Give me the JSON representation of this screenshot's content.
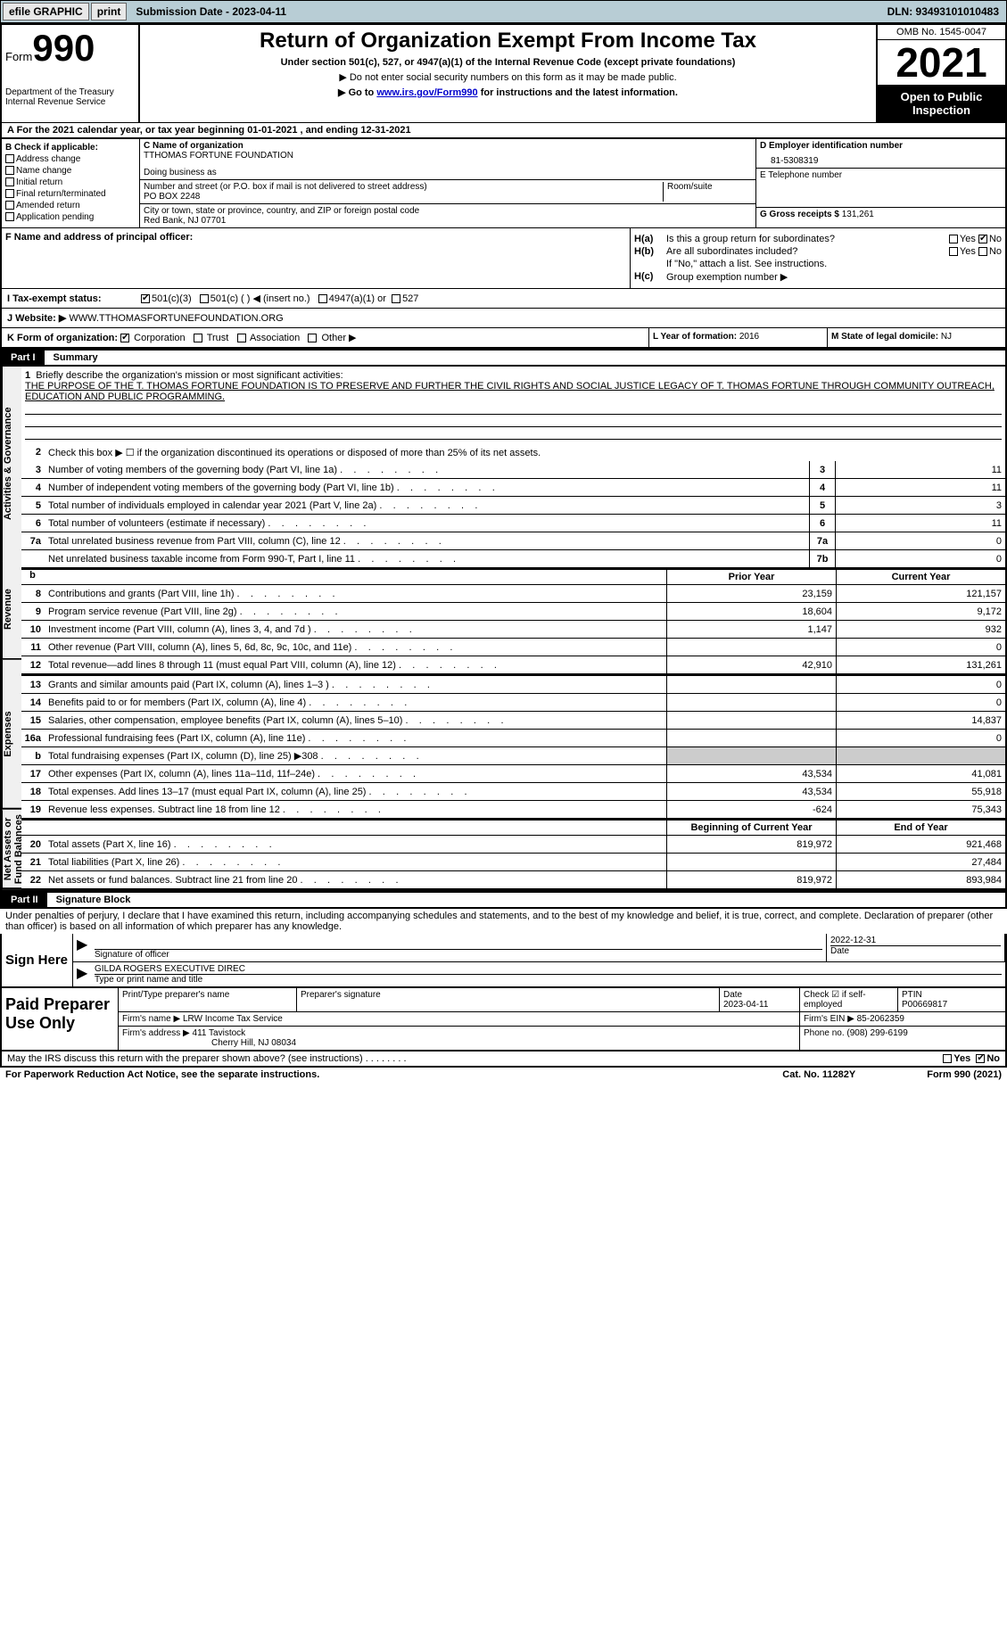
{
  "topbar": {
    "efile": "efile GRAPHIC",
    "print": "print",
    "subdate": "Submission Date - 2023-04-11",
    "dln": "DLN: 93493101010483"
  },
  "header": {
    "form_word": "Form",
    "form_num": "990",
    "title": "Return of Organization Exempt From Income Tax",
    "sub1": "Under section 501(c), 527, or 4947(a)(1) of the Internal Revenue Code (except private foundations)",
    "sub2": "▶ Do not enter social security numbers on this form as it may be made public.",
    "sub3_pre": "▶ Go to ",
    "sub3_link": "www.irs.gov/Form990",
    "sub3_post": " for instructions and the latest information.",
    "dept": "Department of the Treasury",
    "irs": "Internal Revenue Service",
    "omb": "OMB No. 1545-0047",
    "year": "2021",
    "otp": "Open to Public Inspection"
  },
  "rowA": "A For the 2021 calendar year, or tax year beginning 01-01-2021    , and ending 12-31-2021",
  "colB": {
    "label": "B Check if applicable:",
    "items": [
      "Address change",
      "Name change",
      "Initial return",
      "Final return/terminated",
      "Amended return",
      "Application pending"
    ]
  },
  "colC": {
    "name_label": "C Name of organization",
    "name": "TTHOMAS FORTUNE FOUNDATION",
    "dba_label": "Doing business as",
    "addr_label": "Number and street (or P.O. box if mail is not delivered to street address)",
    "room_label": "Room/suite",
    "addr": "PO BOX 2248",
    "city_label": "City or town, state or province, country, and ZIP or foreign postal code",
    "city": "Red Bank, NJ  07701"
  },
  "colD": {
    "label": "D Employer identification number",
    "ein": "81-5308319",
    "tel_label": "E Telephone number",
    "gross_label": "G Gross receipts $",
    "gross": "131,261"
  },
  "rowF": {
    "label": "F  Name and address of principal officer:"
  },
  "colH": {
    "ha_label": "H(a)",
    "ha_text": "Is this a group return for subordinates?",
    "hb_label": "H(b)",
    "hb_text": "Are all subordinates included?",
    "hb_note": "If \"No,\" attach a list. See instructions.",
    "hc_label": "H(c)",
    "hc_text": "Group exemption number ▶",
    "yes": "Yes",
    "no": "No"
  },
  "rowI": {
    "label": "I   Tax-exempt status:",
    "opt1": "501(c)(3)",
    "opt2": "501(c) (   ) ◀ (insert no.)",
    "opt3": "4947(a)(1) or",
    "opt4": "527"
  },
  "rowJ": {
    "label": "J   Website: ▶",
    "url": "WWW.TTHOMASFORTUNEFOUNDATION.ORG"
  },
  "rowK": {
    "label": "K Form of organization:",
    "corp": "Corporation",
    "trust": "Trust",
    "assoc": "Association",
    "other": "Other ▶"
  },
  "rowL": {
    "label": "L Year of formation:",
    "val": "2016"
  },
  "rowM": {
    "label": "M State of legal domicile:",
    "val": "NJ"
  },
  "part1": {
    "num": "Part I",
    "title": "Summary"
  },
  "tabs": {
    "ag": "Activities & Governance",
    "rev": "Revenue",
    "exp": "Expenses",
    "na": "Net Assets or Fund Balances"
  },
  "briefly": {
    "num": "1",
    "label": "Briefly describe the organization's mission or most significant activities:",
    "text": "THE PURPOSE OF THE T. THOMAS FORTUNE FOUNDATION IS TO PRESERVE AND FURTHER THE CIVIL RIGHTS AND SOCIAL JUSTICE LEGACY OF T. THOMAS FORTUNE THROUGH COMMUNITY OUTREACH, EDUCATION AND PUBLIC PROGRAMMING."
  },
  "line2": "Check this box ▶ ☐  if the organization discontinued its operations or disposed of more than 25% of its net assets.",
  "lines_ag": [
    {
      "n": "3",
      "t": "Number of voting members of the governing body (Part VI, line 1a)",
      "b": "3",
      "v": "11"
    },
    {
      "n": "4",
      "t": "Number of independent voting members of the governing body (Part VI, line 1b)",
      "b": "4",
      "v": "11"
    },
    {
      "n": "5",
      "t": "Total number of individuals employed in calendar year 2021 (Part V, line 2a)",
      "b": "5",
      "v": "3"
    },
    {
      "n": "6",
      "t": "Total number of volunteers (estimate if necessary)",
      "b": "6",
      "v": "11"
    },
    {
      "n": "7a",
      "t": "Total unrelated business revenue from Part VIII, column (C), line 12",
      "b": "7a",
      "v": "0"
    },
    {
      "n": "",
      "t": "Net unrelated business taxable income from Form 990-T, Part I, line 11",
      "b": "7b",
      "v": "0"
    }
  ],
  "colheaders": {
    "prior": "Prior Year",
    "current": "Current Year",
    "boy": "Beginning of Current Year",
    "eoy": "End of Year"
  },
  "lines_rev": [
    {
      "n": "8",
      "t": "Contributions and grants (Part VIII, line 1h)",
      "p": "23,159",
      "c": "121,157"
    },
    {
      "n": "9",
      "t": "Program service revenue (Part VIII, line 2g)",
      "p": "18,604",
      "c": "9,172"
    },
    {
      "n": "10",
      "t": "Investment income (Part VIII, column (A), lines 3, 4, and 7d )",
      "p": "1,147",
      "c": "932"
    },
    {
      "n": "11",
      "t": "Other revenue (Part VIII, column (A), lines 5, 6d, 8c, 9c, 10c, and 11e)",
      "p": "",
      "c": "0"
    },
    {
      "n": "12",
      "t": "Total revenue—add lines 8 through 11 (must equal Part VIII, column (A), line 12)",
      "p": "42,910",
      "c": "131,261"
    }
  ],
  "lines_exp": [
    {
      "n": "13",
      "t": "Grants and similar amounts paid (Part IX, column (A), lines 1–3 )",
      "p": "",
      "c": "0"
    },
    {
      "n": "14",
      "t": "Benefits paid to or for members (Part IX, column (A), line 4)",
      "p": "",
      "c": "0"
    },
    {
      "n": "15",
      "t": "Salaries, other compensation, employee benefits (Part IX, column (A), lines 5–10)",
      "p": "",
      "c": "14,837"
    },
    {
      "n": "16a",
      "t": "Professional fundraising fees (Part IX, column (A), line 11e)",
      "p": "",
      "c": "0"
    },
    {
      "n": "b",
      "t": "Total fundraising expenses (Part IX, column (D), line 25) ▶308",
      "p": "shade",
      "c": "shade"
    },
    {
      "n": "17",
      "t": "Other expenses (Part IX, column (A), lines 11a–11d, 11f–24e)",
      "p": "43,534",
      "c": "41,081"
    },
    {
      "n": "18",
      "t": "Total expenses. Add lines 13–17 (must equal Part IX, column (A), line 25)",
      "p": "43,534",
      "c": "55,918"
    },
    {
      "n": "19",
      "t": "Revenue less expenses. Subtract line 18 from line 12",
      "p": "-624",
      "c": "75,343"
    }
  ],
  "lines_na": [
    {
      "n": "20",
      "t": "Total assets (Part X, line 16)",
      "p": "819,972",
      "c": "921,468"
    },
    {
      "n": "21",
      "t": "Total liabilities (Part X, line 26)",
      "p": "",
      "c": "27,484"
    },
    {
      "n": "22",
      "t": "Net assets or fund balances. Subtract line 21 from line 20",
      "p": "819,972",
      "c": "893,984"
    }
  ],
  "part2": {
    "num": "Part II",
    "title": "Signature Block"
  },
  "sig": {
    "decl": "Under penalties of perjury, I declare that I have examined this return, including accompanying schedules and statements, and to the best of my knowledge and belief, it is true, correct, and complete. Declaration of preparer (other than officer) is based on all information of which preparer has any knowledge.",
    "sign_here": "Sign Here",
    "sig_officer": "Signature of officer",
    "date": "Date",
    "date_val": "2022-12-31",
    "name": "GILDA ROGERS  EXECUTIVE DIREC",
    "name_label": "Type or print name and title"
  },
  "paid": {
    "title": "Paid Preparer Use Only",
    "pt_name": "Print/Type preparer's name",
    "pt_sig": "Preparer's signature",
    "pt_date_label": "Date",
    "pt_date": "2023-04-11",
    "check": "Check ☑ if self-employed",
    "ptin_label": "PTIN",
    "ptin": "P00669817",
    "firm_name_label": "Firm's name      ▶",
    "firm_name": "LRW Income Tax Service",
    "firm_ein_label": "Firm's EIN ▶",
    "firm_ein": "85-2062359",
    "firm_addr_label": "Firm's address ▶",
    "firm_addr1": "411 Tavistock",
    "firm_addr2": "Cherry Hill, NJ  08034",
    "phone_label": "Phone no.",
    "phone": "(908) 299-6199"
  },
  "footer": {
    "discuss": "May the IRS discuss this return with the preparer shown above? (see instructions)",
    "yes": "Yes",
    "no": "No",
    "pra": "For Paperwork Reduction Act Notice, see the separate instructions.",
    "cat": "Cat. No. 11282Y",
    "form": "Form 990 (2021)"
  }
}
